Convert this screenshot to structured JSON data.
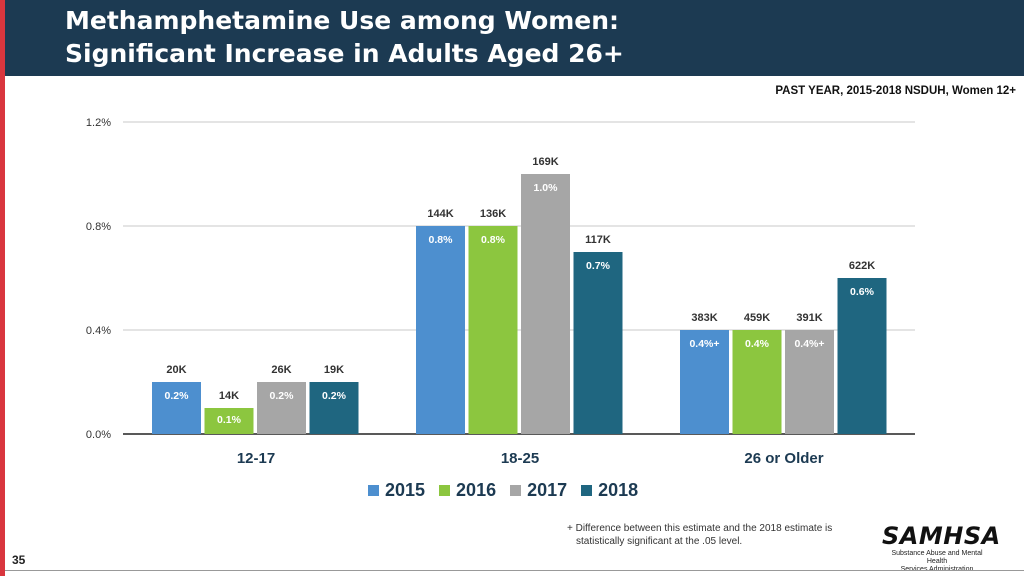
{
  "header": {
    "title_line1": "Methamphetamine Use among Women:",
    "title_line2": "Significant Increase in Adults Aged 26+"
  },
  "subtitle": "PAST YEAR, 2015-2018 NSDUH, Women 12+",
  "colors": {
    "header_bg": "#1c3a52",
    "accent_stripe": "#d9363e",
    "s2015": "#4d8fcf",
    "s2016": "#8cc63f",
    "s2017": "#a6a6a6",
    "s2018": "#1f6680"
  },
  "chart_data": {
    "type": "bar",
    "categories": [
      "12-17",
      "18-25",
      "26 or Older"
    ],
    "ylim": [
      0,
      1.2
    ],
    "yticks": [
      0.0,
      0.4,
      0.8,
      1.2
    ],
    "ytick_labels": [
      "0.0%",
      "0.4%",
      "0.8%",
      "1.2%"
    ],
    "series": [
      {
        "name": "2015",
        "values": [
          0.2,
          0.8,
          0.4
        ],
        "pct_labels": [
          "0.2%",
          "0.8%",
          "0.4%+"
        ],
        "count_labels": [
          "20K",
          "144K",
          "383K"
        ]
      },
      {
        "name": "2016",
        "values": [
          0.1,
          0.8,
          0.4
        ],
        "pct_labels": [
          "0.1%",
          "0.8%",
          "0.4%"
        ],
        "count_labels": [
          "14K",
          "136K",
          "459K"
        ]
      },
      {
        "name": "2017",
        "values": [
          0.2,
          1.0,
          0.4
        ],
        "pct_labels": [
          "0.2%",
          "1.0%",
          "0.4%+"
        ],
        "count_labels": [
          "26K",
          "169K",
          "391K"
        ]
      },
      {
        "name": "2018",
        "values": [
          0.2,
          0.7,
          0.6
        ],
        "pct_labels": [
          "0.2%",
          "0.7%",
          "0.6%"
        ],
        "count_labels": [
          "19K",
          "117K",
          "622K"
        ]
      }
    ]
  },
  "legend": [
    "2015",
    "2016",
    "2017",
    "2018"
  ],
  "footnote": {
    "line1": "+ Difference between this estimate and the 2018 estimate is",
    "line2": "statistically significant at the .05 level."
  },
  "page_number": "35",
  "logo": {
    "word": "SAMHSA",
    "sub1": "Substance Abuse and Mental Health",
    "sub2": "Services Administration"
  }
}
